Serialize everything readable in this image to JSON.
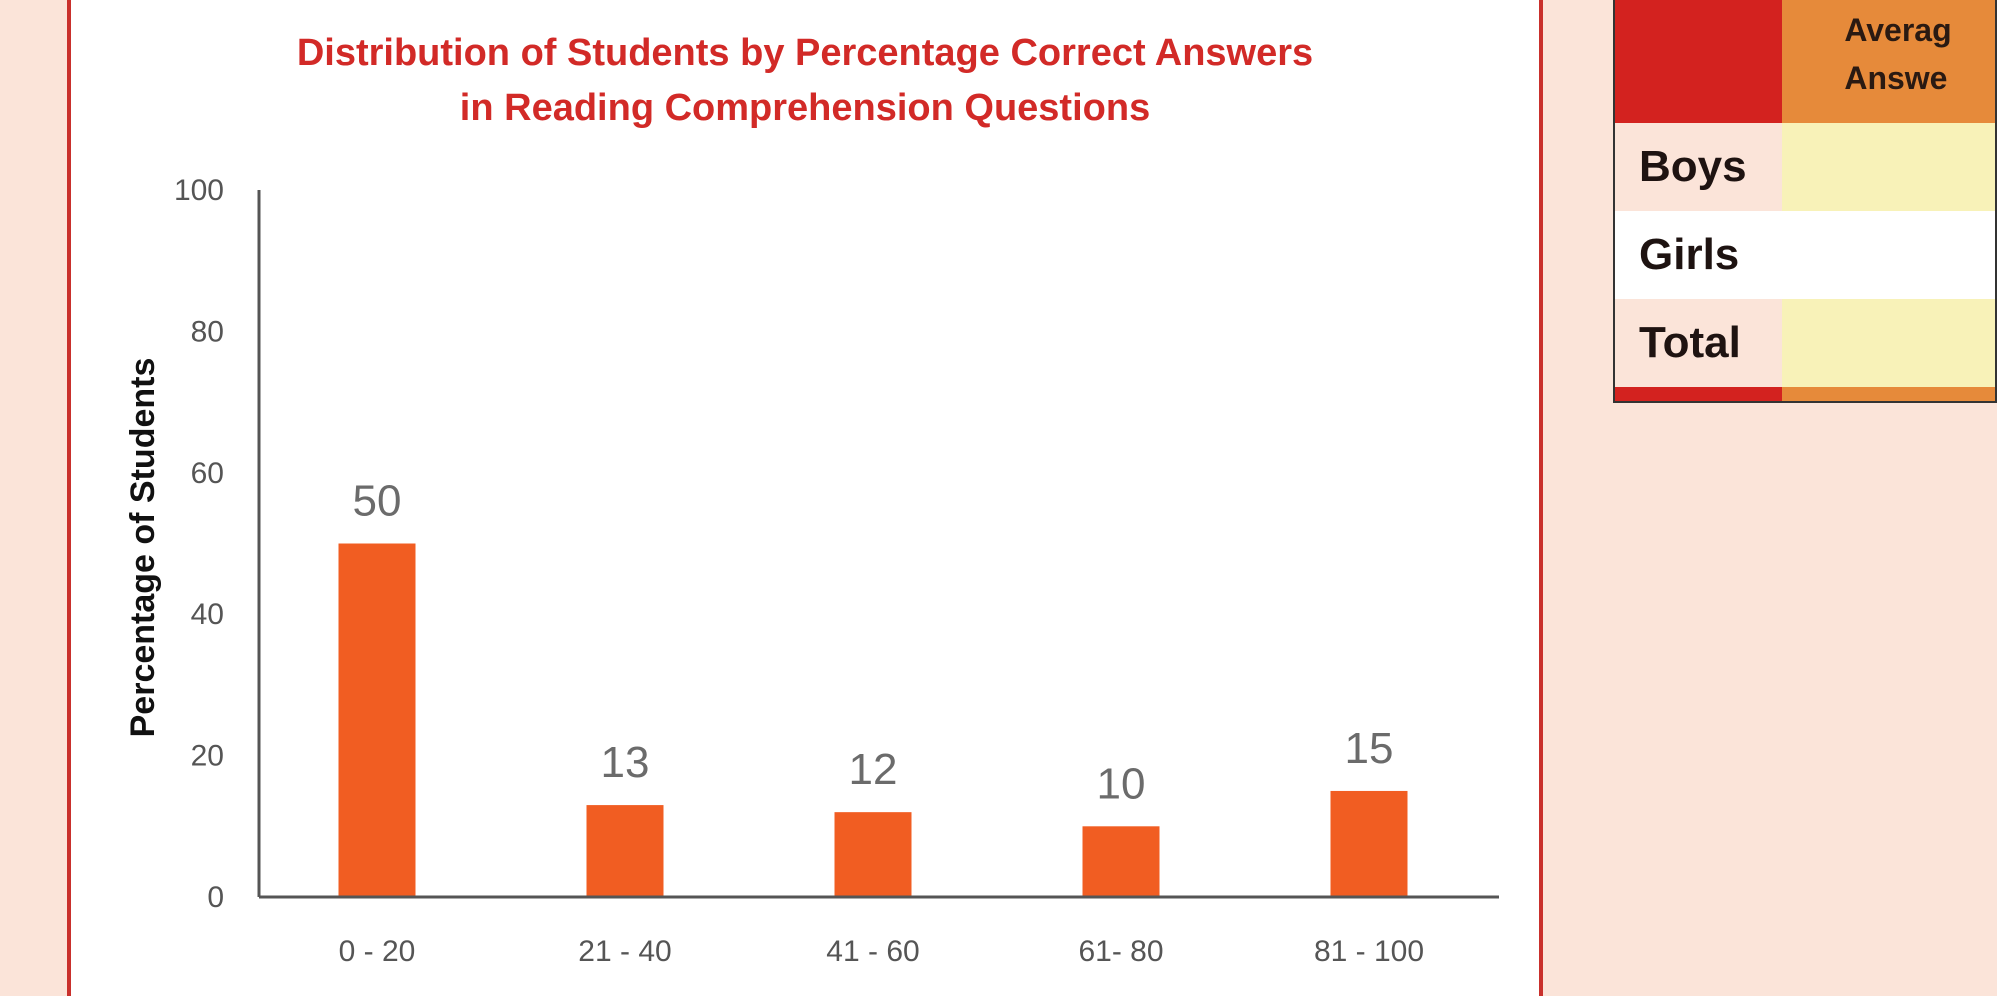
{
  "chart_data": {
    "type": "bar",
    "title": [
      "Distribution of Students by Percentage Correct Answers",
      "in Reading Comprehension Questions"
    ],
    "xlabel": "",
    "ylabel": "Percentage of Students",
    "categories": [
      "0 - 20",
      "21 - 40",
      "41 - 60",
      "61- 80",
      "81 - 100"
    ],
    "values": [
      50,
      13,
      12,
      10,
      15
    ],
    "ylim": [
      0,
      100
    ],
    "yticks": [
      0,
      20,
      40,
      60,
      80,
      100
    ],
    "grid": false,
    "bar_color": "#f15d22"
  },
  "table": {
    "header": [
      "Averag",
      "Answe"
    ],
    "rows": [
      "Boys",
      "Girls",
      "Total"
    ]
  }
}
